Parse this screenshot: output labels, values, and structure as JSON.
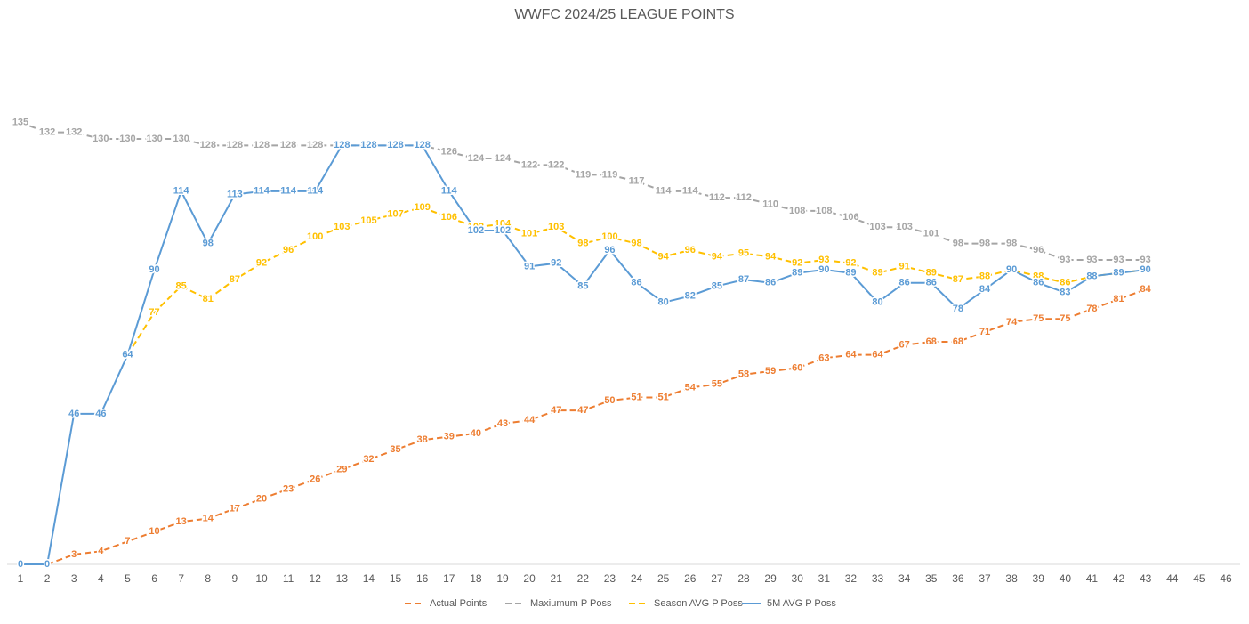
{
  "chart_data": {
    "type": "line",
    "title": "WWFC 2024/25 LEAGUE POINTS",
    "categories": [
      1,
      2,
      3,
      4,
      5,
      6,
      7,
      8,
      9,
      10,
      11,
      12,
      13,
      14,
      15,
      16,
      17,
      18,
      19,
      20,
      21,
      22,
      23,
      24,
      25,
      26,
      27,
      28,
      29,
      30,
      31,
      32,
      33,
      34,
      35,
      36,
      37,
      38,
      39,
      40,
      41,
      42,
      43,
      44,
      45,
      46
    ],
    "ylim": [
      0,
      161
    ],
    "series": [
      {
        "name": "Actual Points",
        "color": "#ed7d31",
        "dashed": true,
        "values": [
          null,
          0,
          3,
          4,
          7,
          10,
          13,
          14,
          17,
          20,
          23,
          26,
          29,
          32,
          35,
          38,
          39,
          40,
          43,
          44,
          47,
          47,
          50,
          51,
          51,
          54,
          55,
          58,
          59,
          60,
          63,
          64,
          64,
          67,
          68,
          68,
          71,
          74,
          75,
          75,
          78,
          81,
          84,
          null,
          null,
          null
        ]
      },
      {
        "name": "Maxiumum P Poss",
        "color": "#a5a5a5",
        "dashed": true,
        "values": [
          135,
          132,
          132,
          130,
          130,
          130,
          130,
          128,
          128,
          128,
          128,
          128,
          128,
          128,
          128,
          128,
          126,
          124,
          124,
          122,
          122,
          119,
          119,
          117,
          114,
          114,
          112,
          112,
          110,
          108,
          108,
          106,
          103,
          103,
          101,
          98,
          98,
          98,
          96,
          93,
          93,
          93,
          93,
          null,
          null,
          null
        ]
      },
      {
        "name": "Season AVG P Poss",
        "color": "#ffc000",
        "dashed": true,
        "values": [
          null,
          null,
          null,
          null,
          64,
          77,
          85,
          81,
          87,
          92,
          96,
          100,
          103,
          105,
          107,
          109,
          106,
          103,
          104,
          101,
          103,
          98,
          100,
          98,
          94,
          96,
          94,
          95,
          94,
          92,
          93,
          92,
          89,
          91,
          89,
          87,
          88,
          90,
          88,
          86,
          88,
          89,
          90,
          null,
          null,
          null
        ]
      },
      {
        "name": "5M AVG P Poss",
        "color": "#5b9bd5",
        "dashed": false,
        "values": [
          0,
          0,
          46,
          46,
          64,
          90,
          114,
          98,
          113,
          114,
          114,
          114,
          128,
          128,
          128,
          128,
          114,
          102,
          102,
          91,
          92,
          85,
          96,
          86,
          80,
          82,
          85,
          87,
          86,
          89,
          90,
          89,
          80,
          86,
          86,
          78,
          84,
          90,
          86,
          83,
          88,
          89,
          90,
          null,
          null,
          null
        ]
      }
    ]
  }
}
